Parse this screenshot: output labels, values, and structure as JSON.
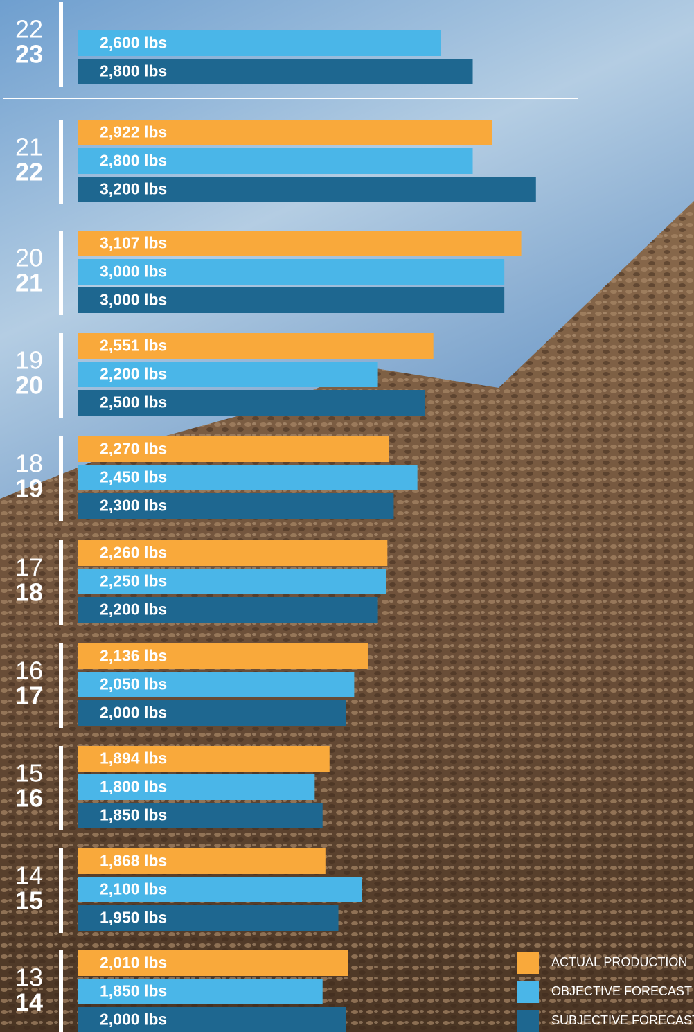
{
  "chart_data": {
    "type": "bar",
    "orientation": "horizontal",
    "categories": [
      [
        "22",
        "23"
      ],
      [
        "21",
        "22"
      ],
      [
        "20",
        "21"
      ],
      [
        "19",
        "20"
      ],
      [
        "18",
        "19"
      ],
      [
        "17",
        "18"
      ],
      [
        "16",
        "17"
      ],
      [
        "15",
        "16"
      ],
      [
        "14",
        "15"
      ],
      [
        "13",
        "14"
      ]
    ],
    "xlim": [
      300,
      4200
    ],
    "series": [
      {
        "name": "ACTUAL PRODUCTION",
        "color": "#f9a93b",
        "values": [
          null,
          2922,
          3107,
          2551,
          2270,
          2260,
          2136,
          1894,
          1868,
          2010
        ],
        "value_labels": [
          null,
          "2,922 lbs",
          "3,107 lbs",
          "2,551 lbs",
          "2,270 lbs",
          "2,260 lbs",
          "2,136 lbs",
          "1,894 lbs",
          "1,868 lbs",
          "2,010 lbs"
        ]
      },
      {
        "name": "OBJECTIVE FORECAST",
        "color": "#4ab6e8",
        "values": [
          2600,
          2800,
          3000,
          2200,
          2450,
          2250,
          2050,
          1800,
          2100,
          1850
        ],
        "value_labels": [
          "2,600 lbs",
          "2,800 lbs",
          "3,000 lbs",
          "2,200 lbs",
          "2,450 lbs",
          "2,250 lbs",
          "2,050 lbs",
          "1,800 lbs",
          "2,100 lbs",
          "1,850 lbs"
        ]
      },
      {
        "name": "SUBJECTIVE FORECAST",
        "color": "#1e6790",
        "values": [
          2800,
          3200,
          3000,
          2500,
          2300,
          2200,
          2000,
          1850,
          1950,
          2000
        ],
        "value_labels": [
          "2,800 lbs",
          "3,200 lbs",
          "3,000 lbs",
          "2,500 lbs",
          "2,300 lbs",
          "2,200 lbs",
          "2,000 lbs",
          "1,850 lbs",
          "1,950 lbs",
          "2,000 lbs"
        ]
      }
    ]
  }
}
